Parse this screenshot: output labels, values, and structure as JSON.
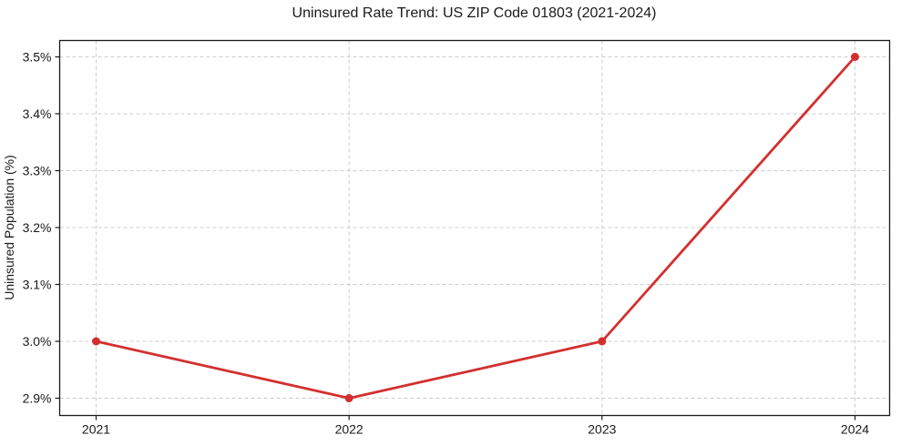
{
  "chart_data": {
    "type": "line",
    "title": "Uninsured Rate Trend: US ZIP Code 01803 (2021-2024)",
    "xlabel": "",
    "ylabel": "Uninsured Population (%)",
    "categories": [
      "2021",
      "2022",
      "2023",
      "2024"
    ],
    "series": [
      {
        "values": [
          3.0,
          2.9,
          3.0,
          3.5
        ],
        "color": "#d32f2f",
        "marker": "circle"
      }
    ],
    "y_tick_values": [
      2.9,
      3.0,
      3.1,
      3.2,
      3.3,
      3.4,
      3.5
    ],
    "y_tick_labels": [
      "2.9%",
      "3.0%",
      "3.1%",
      "3.2%",
      "3.3%",
      "3.4%",
      "3.5%"
    ],
    "ylim": [
      2.87,
      3.53
    ],
    "xlim_padding": 0.05,
    "legend": "none",
    "grid": {
      "visible": true,
      "style": "dashed",
      "color": "#cccccc"
    },
    "frame": {
      "color": "#1a1a1a"
    },
    "text_color": "#1a1a1a"
  }
}
